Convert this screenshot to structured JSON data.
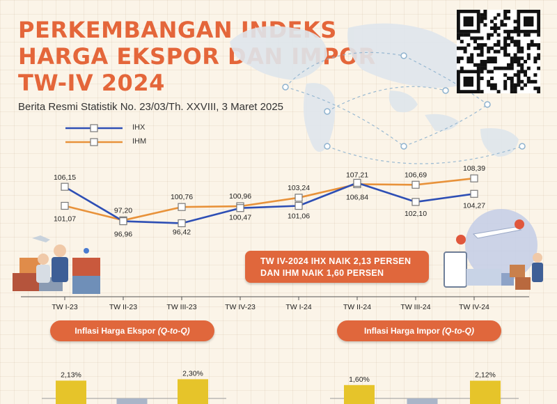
{
  "header": {
    "title_lines": [
      "PERKEMBANGAN INDEKS",
      "HARGA EKSPOR DAN IMPOR",
      "TW-IV 2024"
    ],
    "subtitle": "Berita Resmi Statistik No. 23/03/Th. XXVIII, 3 Maret 2025"
  },
  "highlight": {
    "line1": "TW IV-2024 IHX NAIK 2,13 PERSEN",
    "line2": "DAN IHM NAIK 1,60 PERSEN"
  },
  "sections": {
    "export": {
      "label": "Inflasi Harga Ekspor",
      "qualifier": "(Q-to-Q)"
    },
    "import": {
      "label": "Inflasi Harga Impor",
      "qualifier": "(Q-to-Q)"
    }
  },
  "colors": {
    "ihx": "#2e4fb5",
    "ihm": "#e8923a",
    "accent": "#e0673c",
    "bar": "#e6c42a"
  },
  "icons": [
    "qr-code-icon",
    "world-map-icon",
    "trade-illustration-icon",
    "shipping-illustration-icon"
  ],
  "chart_data": [
    {
      "type": "line",
      "categories": [
        "TW I-23",
        "TW II-23",
        "TW III-23",
        "TW IV-23",
        "TW I-24",
        "TW II-24",
        "TW III-24",
        "TW IV-24"
      ],
      "series": [
        {
          "name": "IHX",
          "values": [
            106.15,
            96.96,
            96.42,
            100.47,
            101.06,
            107.21,
            102.1,
            104.27
          ],
          "labels": [
            "106,15",
            "96,96",
            "96,42",
            "100,47",
            "101,06",
            "107,21",
            "102,10",
            "104,27"
          ]
        },
        {
          "name": "IHM",
          "values": [
            101.07,
            97.2,
            100.76,
            100.96,
            103.24,
            106.84,
            106.69,
            108.39
          ],
          "labels": [
            "101,07",
            "97,20",
            "100,76",
            "100,96",
            "103,24",
            "106,84",
            "106,69",
            "108,39"
          ]
        }
      ],
      "legend": "top-left"
    },
    {
      "type": "bar",
      "title": "Inflasi Harga Ekspor (Q-to-Q)",
      "values_visible": [
        2.13,
        2.3
      ],
      "labels": [
        "2,13%",
        "2,30%"
      ]
    },
    {
      "type": "bar",
      "title": "Inflasi Harga Impor (Q-to-Q)",
      "values_visible": [
        1.6,
        2.12
      ],
      "labels": [
        "1,60%",
        "2,12%"
      ]
    }
  ]
}
